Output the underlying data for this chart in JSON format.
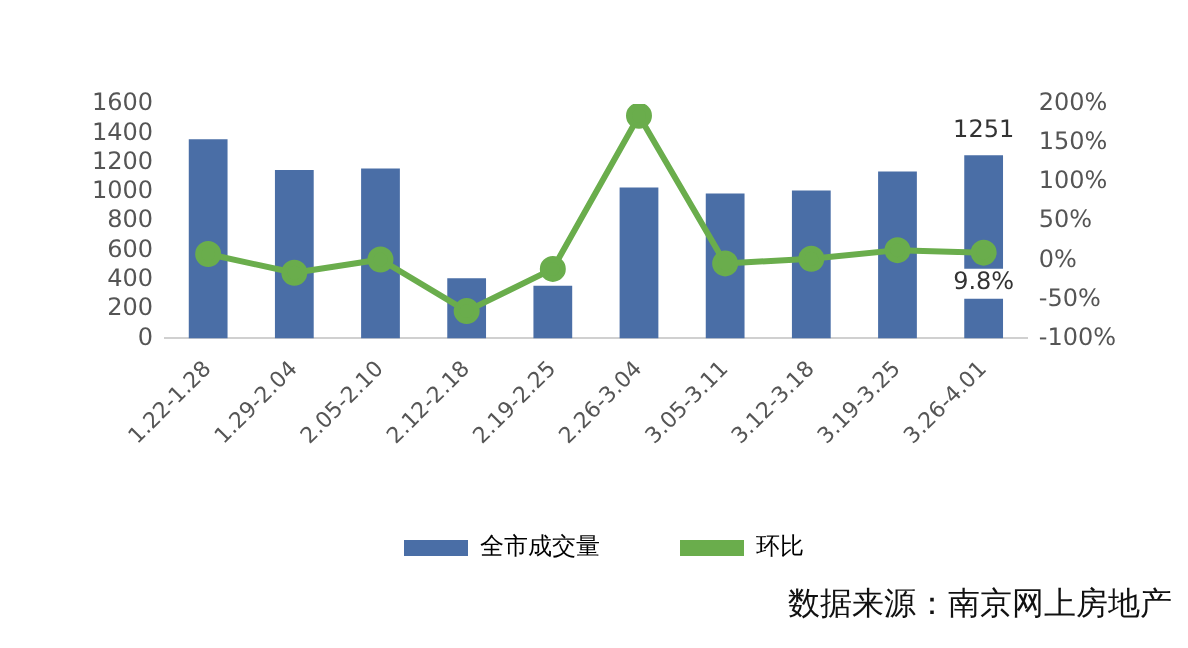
{
  "chart_data": {
    "type": "bar",
    "categories": [
      "1.22-1.28",
      "1.29-2.04",
      "2.05-2.10",
      "2.12-2.18",
      "2.19-2.25",
      "2.26-3.04",
      "3.05-3.11",
      "3.12-3.18",
      "3.19-3.25",
      "3.26-4.01"
    ],
    "series": [
      {
        "name": "全市成交量",
        "color": "#4a6ea6",
        "values": [
          1360,
          1150,
          1160,
          410,
          360,
          1030,
          990,
          1010,
          1140,
          1251
        ],
        "value_labels": [
          null,
          null,
          null,
          null,
          null,
          null,
          null,
          null,
          null,
          "1251"
        ]
      },
      {
        "name": "环比",
        "type": "line",
        "axis": "y2",
        "color": "#6aad4c",
        "values": [
          8,
          -16,
          1,
          -65,
          -11,
          185,
          -4,
          2,
          13,
          9.8
        ],
        "value_labels": [
          null,
          null,
          null,
          null,
          null,
          null,
          null,
          null,
          null,
          "9.8%"
        ]
      }
    ],
    "ylim": [
      0,
      1600
    ],
    "yticks": [
      0,
      200,
      400,
      600,
      800,
      1000,
      1200,
      1400,
      1600
    ],
    "y2lim": [
      -100,
      200
    ],
    "y2ticks": [
      {
        "value": -100,
        "label": "-100%"
      },
      {
        "value": -50,
        "label": "-50%"
      },
      {
        "value": 0,
        "label": "0%"
      },
      {
        "value": 50,
        "label": "50%"
      },
      {
        "value": 100,
        "label": "100%"
      },
      {
        "value": 150,
        "label": "150%"
      },
      {
        "value": 200,
        "label": "200%"
      }
    ],
    "grid": false,
    "legend": "bottom",
    "marker": "circle",
    "line_style": "solid",
    "annotations": [
      "数据来源：南京网上房地产"
    ]
  }
}
